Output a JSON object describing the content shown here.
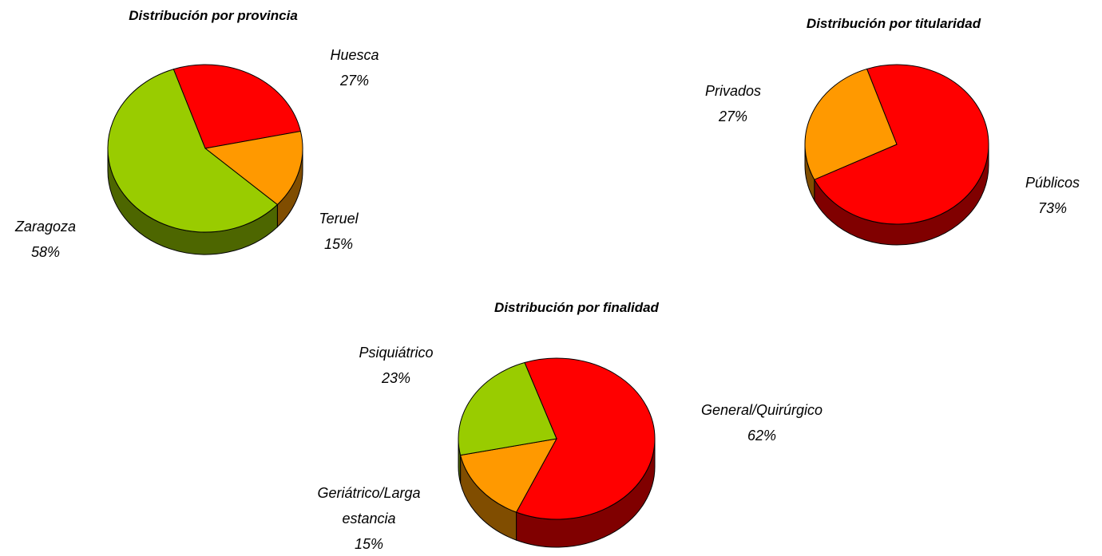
{
  "chart_data": [
    {
      "type": "pie",
      "title": "Distribución por provincia",
      "categories": [
        "Huesca",
        "Teruel",
        "Zaragoza"
      ],
      "values": [
        27,
        15,
        58
      ],
      "value_labels": [
        "27%",
        "15%",
        "58%"
      ],
      "colors": [
        "#ff0000",
        "#ff9900",
        "#99cc00"
      ]
    },
    {
      "type": "pie",
      "title": "Distribución por titularidad",
      "categories": [
        "Públicos",
        "Privados"
      ],
      "values": [
        73,
        27
      ],
      "value_labels": [
        "73%",
        "27%"
      ],
      "colors": [
        "#ff0000",
        "#ff9900"
      ]
    },
    {
      "type": "pie",
      "title": "Distribución por finalidad",
      "categories": [
        "General/Quirúrgico",
        "Geriátrico/Larga estancia",
        "Psiquiátrico"
      ],
      "values": [
        62,
        15,
        23
      ],
      "value_labels": [
        "62%",
        "15%",
        "23%"
      ],
      "colors": [
        "#ff0000",
        "#ff9900",
        "#99cc00"
      ]
    }
  ]
}
